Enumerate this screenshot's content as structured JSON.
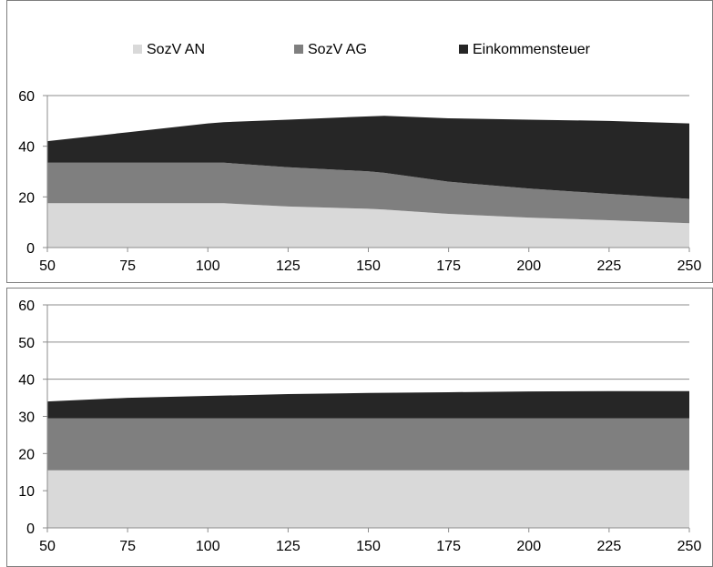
{
  "colors": {
    "sozv_an": "#d9d9d9",
    "sozv_ag": "#7f7f7f",
    "einkommensteuer": "#262626",
    "axis": "#8c8c8c",
    "frame": "#7f7f7f"
  },
  "legend": {
    "placement": "top",
    "items": [
      {
        "key": "sozv_an",
        "label": "SozV AN"
      },
      {
        "key": "sozv_ag",
        "label": "SozV AG"
      },
      {
        "key": "einkommensteuer",
        "label": "Einkommensteuer"
      }
    ]
  },
  "chart_data": [
    {
      "type": "area",
      "stacked": true,
      "x": [
        50,
        75,
        100,
        105,
        125,
        150,
        155,
        175,
        200,
        225,
        250
      ],
      "x_ticks": [
        50,
        75,
        100,
        125,
        150,
        175,
        200,
        225,
        250
      ],
      "xlim": [
        50,
        250
      ],
      "ylim": [
        0,
        60
      ],
      "y_ticks": [
        0,
        20,
        40,
        60
      ],
      "grid": "horizontal",
      "series": [
        {
          "key": "sozv_an",
          "name": "SozV AN",
          "values": [
            17.5,
            17.5,
            17.5,
            17.5,
            16.2,
            15.3,
            15.0,
            13.3,
            11.8,
            10.8,
            9.6
          ]
        },
        {
          "key": "sozv_ag",
          "name": "SozV AG",
          "values": [
            16.0,
            16.0,
            16.0,
            16.0,
            15.5,
            14.8,
            14.5,
            12.7,
            11.5,
            10.4,
            9.6
          ]
        },
        {
          "key": "einkommensteuer",
          "name": "Einkommensteuer",
          "values": [
            8.5,
            12.0,
            15.5,
            16.0,
            18.8,
            21.7,
            22.5,
            25.0,
            27.2,
            28.8,
            29.8
          ]
        }
      ]
    },
    {
      "type": "area",
      "stacked": true,
      "x": [
        50,
        75,
        100,
        125,
        150,
        175,
        200,
        225,
        250
      ],
      "x_ticks": [
        50,
        75,
        100,
        125,
        150,
        175,
        200,
        225,
        250
      ],
      "xlim": [
        50,
        250
      ],
      "ylim": [
        0,
        60
      ],
      "y_ticks": [
        0,
        10,
        20,
        30,
        40,
        50,
        60
      ],
      "grid": "horizontal",
      "series": [
        {
          "key": "sozv_an",
          "name": "SozV AN",
          "values": [
            15.5,
            15.5,
            15.5,
            15.5,
            15.5,
            15.5,
            15.5,
            15.5,
            15.5
          ]
        },
        {
          "key": "sozv_ag",
          "name": "SozV AG",
          "values": [
            14.0,
            14.0,
            14.0,
            14.0,
            14.0,
            14.0,
            14.0,
            14.0,
            14.0
          ]
        },
        {
          "key": "einkommensteuer",
          "name": "Einkommensteuer",
          "values": [
            4.5,
            5.5,
            6.0,
            6.5,
            6.8,
            7.0,
            7.2,
            7.3,
            7.3
          ]
        }
      ]
    }
  ]
}
